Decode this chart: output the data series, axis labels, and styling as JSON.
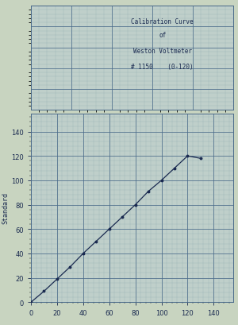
{
  "title_lines": [
    "Calibration Curve",
    "of",
    "Weston Voltmeter",
    "# 1150    (0-120)"
  ],
  "ylabel": "Standard",
  "xlim": [
    0,
    155
  ],
  "ylim": [
    0,
    155
  ],
  "xticks": [
    0,
    20,
    40,
    60,
    80,
    100,
    120,
    140
  ],
  "yticks": [
    0,
    20,
    40,
    60,
    80,
    100,
    120,
    140
  ],
  "line_x": [
    0,
    10,
    20,
    30,
    40,
    50,
    60,
    70,
    80,
    90,
    100,
    110,
    120,
    130
  ],
  "line_y": [
    0,
    9,
    19,
    29,
    40,
    50,
    60,
    70,
    80,
    91,
    100,
    110,
    120,
    118
  ],
  "bg_color": "#bfcfca",
  "grid_major_color": "#4a6a8a",
  "grid_minor_color": "#7a9aaa",
  "line_color": "#1a2a50",
  "text_color": "#1a2a50",
  "marker_color": "#1a2a50",
  "paper_color": "#c8d4c0",
  "title_fontsize": 5.5,
  "ylabel_fontsize": 6,
  "tick_fontsize": 6
}
